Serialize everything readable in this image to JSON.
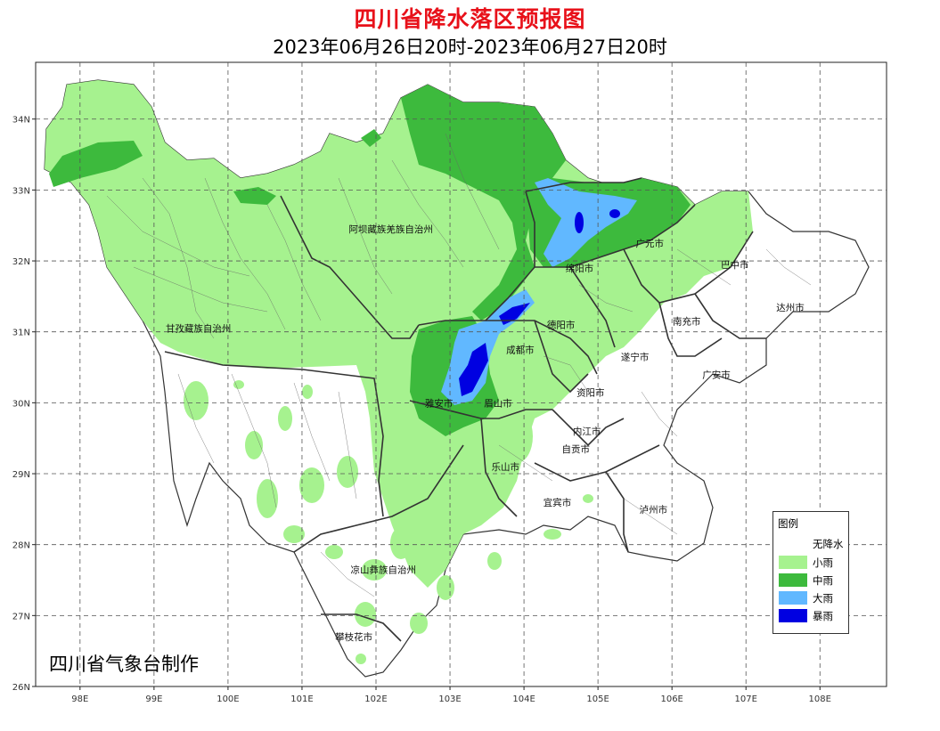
{
  "title": "四川省降水落区预报图",
  "subtitle": "2023年06月26日20时-2023年06月27日20时",
  "credit": "四川省气象台制作",
  "map": {
    "lat_ticks": [
      "34N",
      "33N",
      "32N",
      "31N",
      "30N",
      "29N",
      "28N",
      "27N",
      "26N"
    ],
    "lon_ticks": [
      "98E",
      "99E",
      "100E",
      "101E",
      "102E",
      "103E",
      "104E",
      "105E",
      "106E",
      "107E",
      "108E"
    ],
    "grid": "dashed",
    "regions": [
      {
        "name": "阿坝藏族羌族自治州",
        "lon": 102.2,
        "lat": 32.4
      },
      {
        "name": "甘孜藏族自治州",
        "lon": 99.6,
        "lat": 31.0
      },
      {
        "name": "凉山彝族自治州",
        "lon": 102.1,
        "lat": 27.6
      },
      {
        "name": "攀枝花市",
        "lon": 101.7,
        "lat": 26.65
      },
      {
        "name": "雅安市",
        "lon": 102.85,
        "lat": 29.95
      },
      {
        "name": "眉山市",
        "lon": 103.65,
        "lat": 29.95
      },
      {
        "name": "成都市",
        "lon": 103.95,
        "lat": 30.7
      },
      {
        "name": "德阳市",
        "lon": 104.5,
        "lat": 31.05
      },
      {
        "name": "绵阳市",
        "lon": 104.75,
        "lat": 31.85
      },
      {
        "name": "广元市",
        "lon": 105.7,
        "lat": 32.2
      },
      {
        "name": "巴中市",
        "lon": 106.85,
        "lat": 31.9
      },
      {
        "name": "达州市",
        "lon": 107.6,
        "lat": 31.3
      },
      {
        "name": "南充市",
        "lon": 106.2,
        "lat": 31.1
      },
      {
        "name": "遂宁市",
        "lon": 105.5,
        "lat": 30.6
      },
      {
        "name": "广安市",
        "lon": 106.6,
        "lat": 30.35
      },
      {
        "name": "资阳市",
        "lon": 104.9,
        "lat": 30.1
      },
      {
        "name": "内江市",
        "lon": 104.85,
        "lat": 29.55
      },
      {
        "name": "自贡市",
        "lon": 104.7,
        "lat": 29.3
      },
      {
        "name": "乐山市",
        "lon": 103.75,
        "lat": 29.05
      },
      {
        "name": "宜宾市",
        "lon": 104.45,
        "lat": 28.55
      },
      {
        "name": "泸州市",
        "lon": 105.75,
        "lat": 28.45
      }
    ]
  },
  "legend": {
    "title": "图例",
    "items": [
      {
        "label": "无降水",
        "color": "#ffffff"
      },
      {
        "label": "小雨",
        "color": "#a6f28f"
      },
      {
        "label": "中雨",
        "color": "#3dba3d"
      },
      {
        "label": "大雨",
        "color": "#61b8ff"
      },
      {
        "label": "暴雨",
        "color": "#0000e1"
      }
    ]
  }
}
